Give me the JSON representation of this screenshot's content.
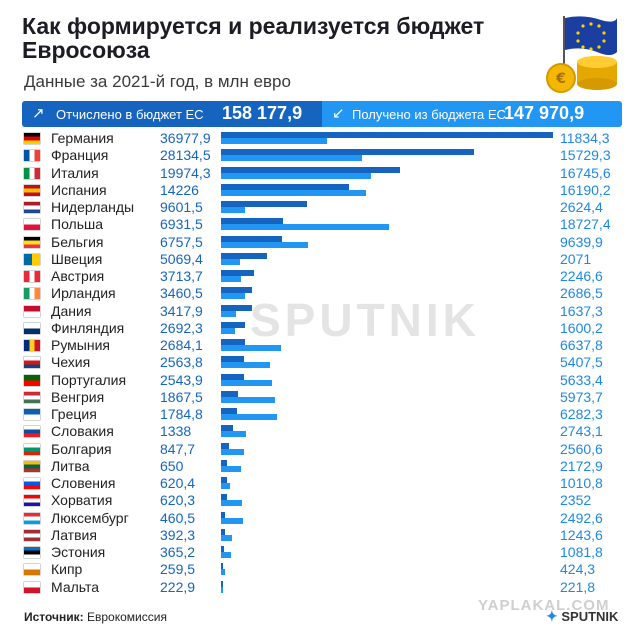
{
  "title": "Как формируется и реализуется бюджет Евросоюза",
  "subtitle": "Данные за 2021-й год, в млн евро",
  "summary": {
    "contributed_label": "Отчислено в бюджет ЕС",
    "contributed_value": "158 177,9",
    "received_label": "Получено из бюджета ЕС",
    "received_value": "147 970,9"
  },
  "icons": {
    "contributed": "arrow-up-right-icon",
    "received": "arrow-down-left-icon",
    "brand": "sputnik-satellite-icon"
  },
  "colors": {
    "contributed": "#1565c0",
    "received": "#2196f3"
  },
  "chart_data": {
    "type": "bar",
    "orientation": "horizontal",
    "categories": [
      "Германия",
      "Франция",
      "Италия",
      "Испания",
      "Нидерланды",
      "Польша",
      "Бельгия",
      "Швеция",
      "Австрия",
      "Ирландия",
      "Дания",
      "Финляндия",
      "Румыния",
      "Чехия",
      "Португалия",
      "Венгрия",
      "Греция",
      "Словакия",
      "Болгария",
      "Литва",
      "Словения",
      "Хорватия",
      "Люксембург",
      "Латвия",
      "Эстония",
      "Кипр",
      "Мальта"
    ],
    "series": [
      {
        "name": "Отчислено в бюджет ЕС",
        "values": [
          36977.9,
          28134.5,
          19974.3,
          14226,
          9601.5,
          6931.5,
          6757.5,
          5069.4,
          3713.7,
          3460.5,
          3417.9,
          2692.3,
          2684.1,
          2563.8,
          2543.9,
          1867.5,
          1784.8,
          1338,
          847.7,
          650,
          620.4,
          620.3,
          460.5,
          392.3,
          365.2,
          259.5,
          222.9
        ],
        "labels": [
          "36977,9",
          "28134,5",
          "19974,3",
          "14226",
          "9601,5",
          "6931,5",
          "6757,5",
          "5069,4",
          "3713,7",
          "3460,5",
          "3417,9",
          "2692,3",
          "2684,1",
          "2563,8",
          "2543,9",
          "1867,5",
          "1784,8",
          "1338",
          "847,7",
          "650",
          "620,4",
          "620,3",
          "460,5",
          "392,3",
          "365,2",
          "259,5",
          "222,9"
        ]
      },
      {
        "name": "Получено из бюджета ЕС",
        "values": [
          11834.3,
          15729.3,
          16745.6,
          16190.2,
          2624.4,
          18727.4,
          9639.9,
          2071,
          2246.6,
          2686.5,
          1637.3,
          1600.2,
          6637.8,
          5407.5,
          5633.4,
          5973.7,
          6282.3,
          2743.1,
          2560.6,
          2172.9,
          1010.8,
          2352,
          2492.6,
          1243.6,
          1081.8,
          424.3,
          221.8
        ],
        "labels": [
          "11834,3",
          "15729,3",
          "16745,6",
          "16190,2",
          "2624,4",
          "18727,4",
          "9639,9",
          "2071",
          "2246,6",
          "2686,5",
          "1637,3",
          "1600,2",
          "6637,8",
          "5407,5",
          "5633,4",
          "5973,7",
          "6282,3",
          "2743,1",
          "2560,6",
          "2172,9",
          "1010,8",
          "2352",
          "2492,6",
          "1243,6",
          "1081,8",
          "424,3",
          "221,8"
        ]
      }
    ],
    "xlim": [
      0,
      36977.9
    ],
    "grid": false,
    "legend": "top"
  },
  "flags": [
    [
      "#000000",
      "#dd0000",
      "#ffce00"
    ],
    [
      "#0055a4",
      "#ffffff",
      "#ef4135"
    ],
    [
      "#009246",
      "#ffffff",
      "#ce2b37"
    ],
    [
      "#c60b1e",
      "#ffc400",
      "#c60b1e"
    ],
    [
      "#ae1c28",
      "#ffffff",
      "#21468b"
    ],
    [
      "#ffffff",
      "#dc143c"
    ],
    [
      "#000000",
      "#fdda24",
      "#ef3340"
    ],
    [
      "#006aa7",
      "#fecc00"
    ],
    [
      "#ed2939",
      "#ffffff",
      "#ed2939"
    ],
    [
      "#169b62",
      "#ffffff",
      "#ff883e"
    ],
    [
      "#c60c30",
      "#ffffff"
    ],
    [
      "#ffffff",
      "#002f6c"
    ],
    [
      "#002b7f",
      "#fcd116",
      "#ce1126"
    ],
    [
      "#ffffff",
      "#d7141a",
      "#11457e"
    ],
    [
      "#006600",
      "#ff0000"
    ],
    [
      "#ce2939",
      "#ffffff",
      "#477050"
    ],
    [
      "#0d5eaf",
      "#ffffff"
    ],
    [
      "#ffffff",
      "#0b4ea2",
      "#ee1c25"
    ],
    [
      "#ffffff",
      "#00966e",
      "#d62612"
    ],
    [
      "#fdb913",
      "#006a44",
      "#c1272d"
    ],
    [
      "#ffffff",
      "#005ce5",
      "#ff0000"
    ],
    [
      "#ff0000",
      "#ffffff",
      "#171796"
    ],
    [
      "#ed2939",
      "#ffffff",
      "#00a1de"
    ],
    [
      "#9e3039",
      "#ffffff",
      "#9e3039"
    ],
    [
      "#0072ce",
      "#000000",
      "#ffffff"
    ],
    [
      "#ffffff",
      "#d57800"
    ],
    [
      "#ffffff",
      "#cf142b"
    ]
  ],
  "watermark": "SPUTNIK",
  "source": {
    "label": "Источник:",
    "value": "Еврокомиссия"
  },
  "brand": "SPUTNIK",
  "site_watermark": "YAPLAKAL.COM"
}
